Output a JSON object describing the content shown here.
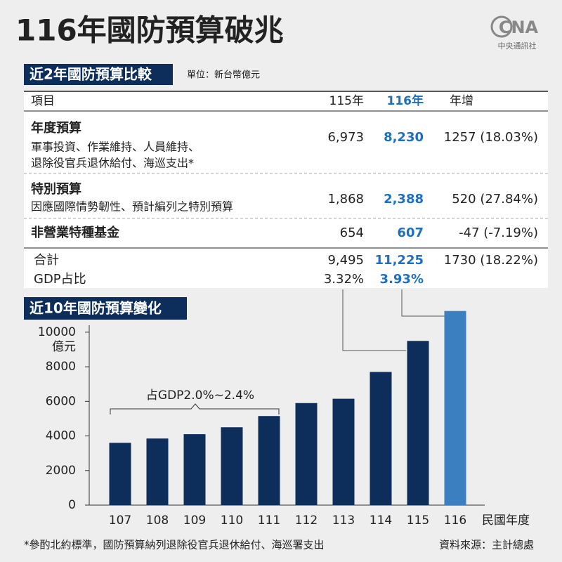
{
  "header": {
    "title": "116年國防預算破兆",
    "logo": "CNA",
    "agency": "中央通訊社"
  },
  "table": {
    "title": "近2年國防預算比較",
    "unit": "單位：新台幣億元",
    "columns": [
      "項目",
      "115年",
      "116年",
      "年增"
    ],
    "rows": [
      {
        "name": "年度預算",
        "desc": [
          "軍事投資、作業維持、人員維持、",
          "退除役官兵退休給付、海巡支出*"
        ],
        "v115": "6,973",
        "v116": "8,230",
        "growth": "1257 (18.03%)"
      },
      {
        "name": "特別預算",
        "desc": [
          "因應國際情勢韌性、預計編列之特別預算"
        ],
        "v115": "1,868",
        "v116": "2,388",
        "growth": "520 (27.84%)"
      },
      {
        "name": "非營業特種基金",
        "desc": [],
        "v115": "654",
        "v116": "607",
        "growth": "-47 (-7.19%)"
      }
    ],
    "total": {
      "name": "合計",
      "v115": "9,495",
      "v116": "11,225",
      "growth": "1730 (18.22%)"
    },
    "gdp": {
      "name": "GDP占比",
      "v115": "3.32%",
      "v116": "3.93%"
    }
  },
  "chart_data": {
    "type": "bar",
    "title": "近10年國防預算變化",
    "categories": [
      "107",
      "108",
      "109",
      "110",
      "111",
      "112",
      "113",
      "114",
      "115",
      "116"
    ],
    "values": [
      3600,
      3850,
      4100,
      4500,
      5150,
      5900,
      6150,
      7700,
      9495,
      11225
    ],
    "colors": [
      "#0d2d5a",
      "#0d2d5a",
      "#0d2d5a",
      "#0d2d5a",
      "#0d2d5a",
      "#0d2d5a",
      "#0d2d5a",
      "#0d2d5a",
      "#0d2d5a",
      "#3b7fc0"
    ],
    "y_unit": "億元",
    "x_label": "民國年度",
    "ylim": [
      0,
      10400
    ],
    "yticks": [
      0,
      2000,
      4000,
      6000,
      8000,
      10000
    ],
    "annotation": "占GDP2.0%~2.4%"
  },
  "footer": {
    "note": "*參酌北約標準，國防預算納列退除役官兵退休給付、海巡署支出",
    "source": "資料來源：主計總處"
  }
}
